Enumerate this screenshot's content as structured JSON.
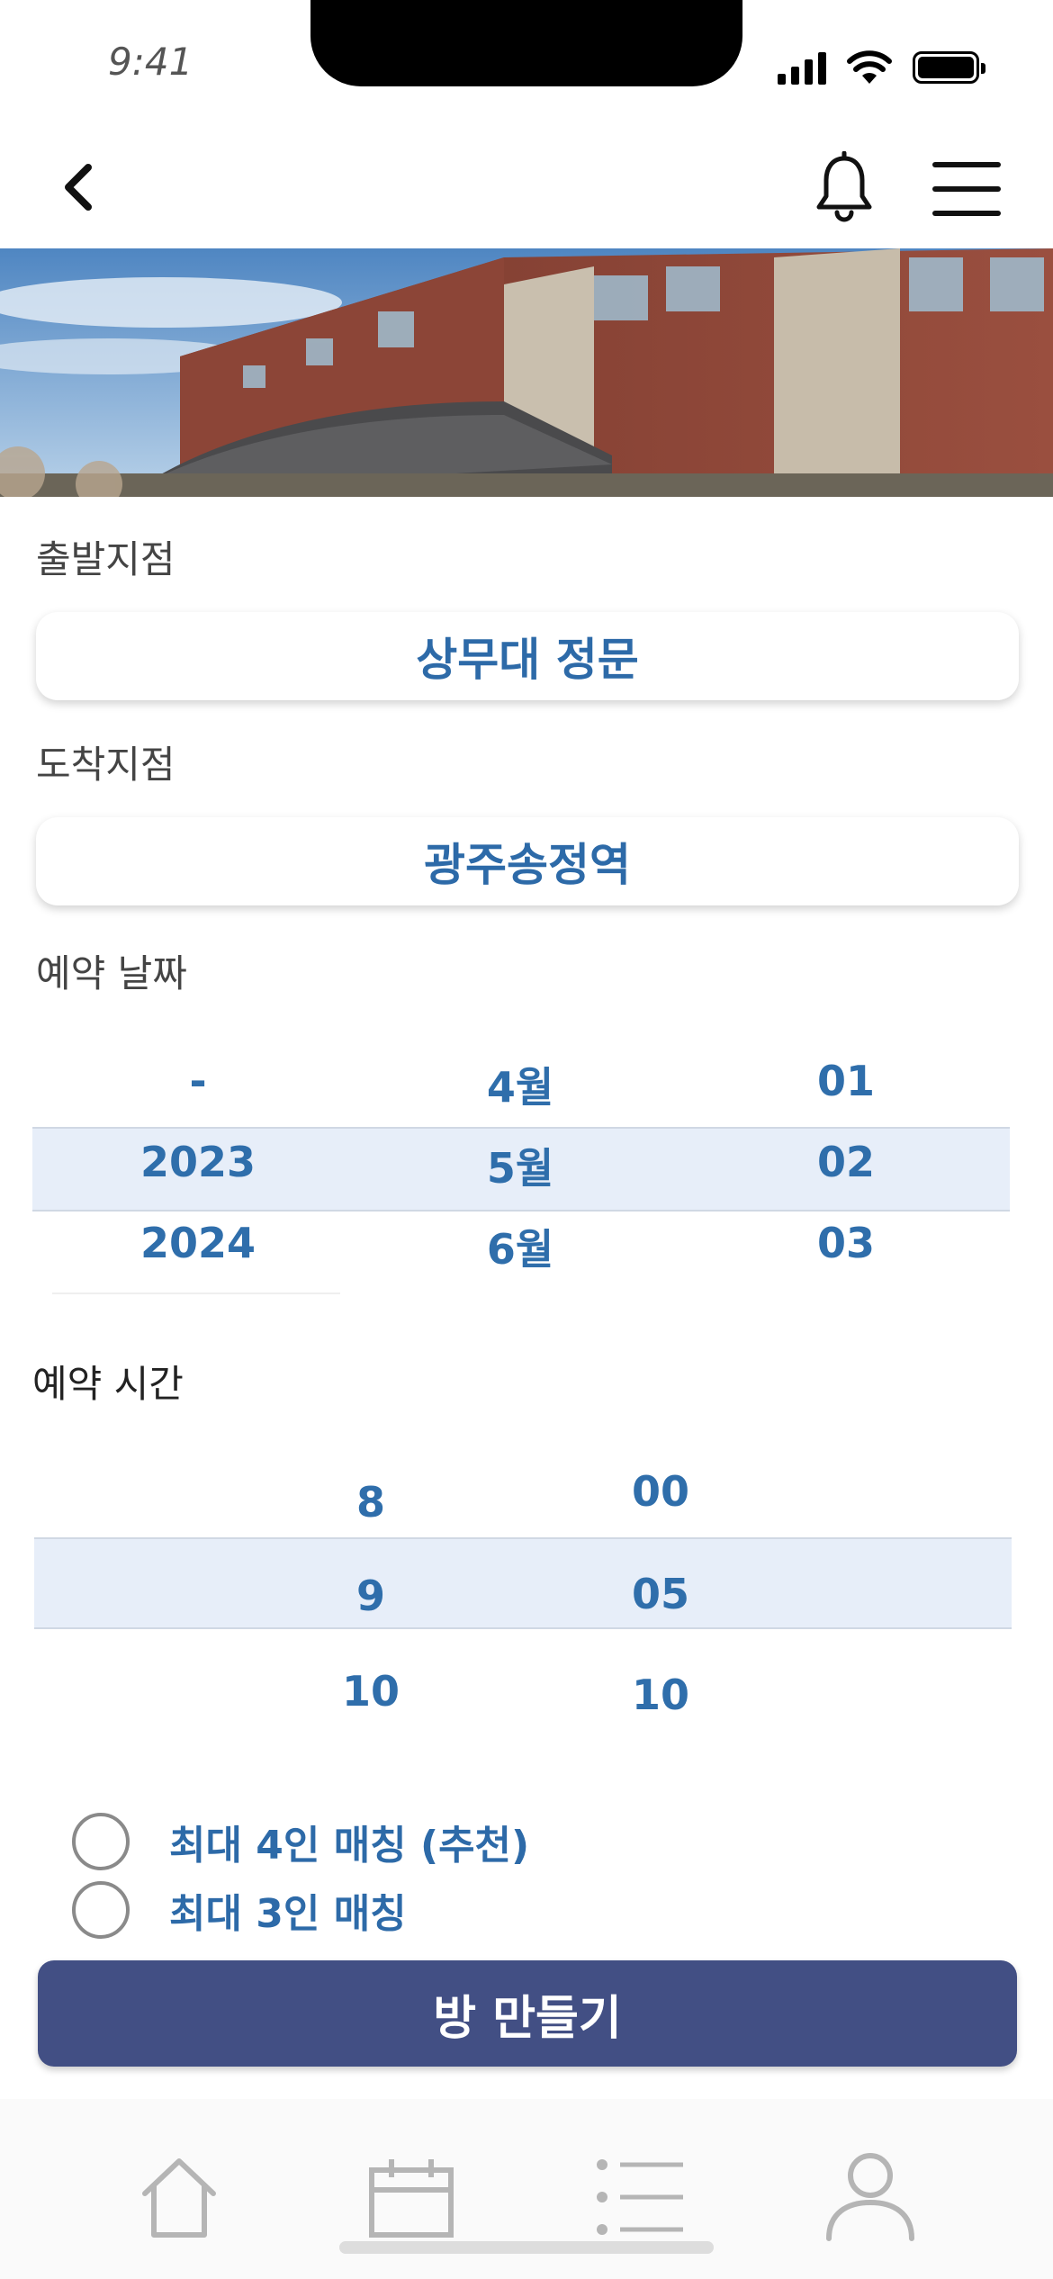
{
  "status_bar": {
    "time": "9:41"
  },
  "header": {
    "back_icon": "chevron-left-icon",
    "notification_icon": "bell-icon",
    "menu_icon": "hamburger-menu-icon"
  },
  "departure": {
    "label": "출발지점",
    "value": "상무대 정문"
  },
  "arrival": {
    "label": "도착지점",
    "value": "광주송정역"
  },
  "reservation_date": {
    "label": "예약 날짜",
    "years": [
      "-",
      "2023",
      "2024"
    ],
    "months": [
      "4월",
      "5월",
      "6월"
    ],
    "days": [
      "01",
      "02",
      "03"
    ],
    "selected": {
      "year": "2023",
      "month": "5월",
      "day": "02"
    }
  },
  "reservation_time": {
    "label": "예약 시간",
    "hours": [
      "8",
      "9",
      "10"
    ],
    "minutes": [
      "00",
      "05",
      "10"
    ],
    "selected": {
      "hour": "9",
      "minute": "05"
    }
  },
  "matching_options": [
    {
      "label": "최대 4인 매칭 (추천)",
      "checked": false
    },
    {
      "label": "최대 3인 매칭",
      "checked": false
    }
  ],
  "create_button": {
    "label": "방 만들기"
  },
  "tab_bar": {
    "tabs": [
      {
        "name": "home",
        "icon": "home-icon"
      },
      {
        "name": "calendar",
        "icon": "calendar-icon"
      },
      {
        "name": "list",
        "icon": "list-icon"
      },
      {
        "name": "profile",
        "icon": "user-icon"
      }
    ]
  },
  "colors": {
    "accent_text": "#2d6aa8",
    "picker_highlight": "#e7eef9",
    "primary_button": "#424f84"
  }
}
